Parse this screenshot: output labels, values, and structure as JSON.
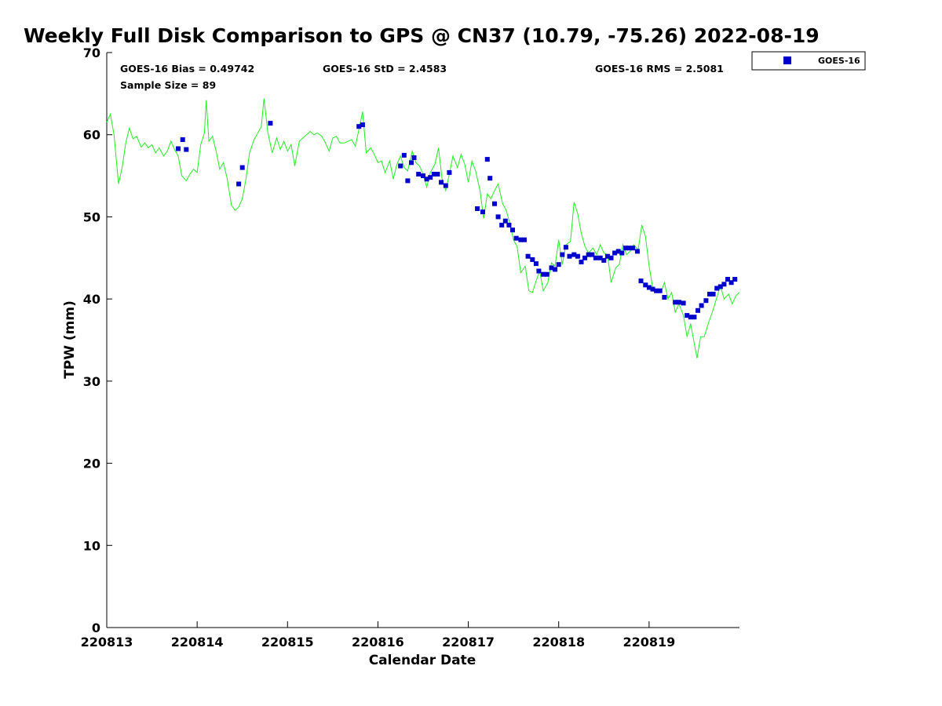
{
  "chart_data": {
    "type": "line",
    "title": "Weekly Full Disk Comparison to GPS @ CN37 (10.79, -75.26) 2022-08-19",
    "xlabel": "Calendar Date",
    "ylabel": "TPW (mm)",
    "xlim": [
      0,
      7
    ],
    "ylim": [
      0,
      70
    ],
    "x_ticks": [
      0,
      1,
      2,
      3,
      4,
      5,
      6
    ],
    "x_tick_labels": [
      "220813",
      "220814",
      "220815",
      "220816",
      "220817",
      "220818",
      "220819"
    ],
    "y_ticks": [
      0,
      10,
      20,
      30,
      40,
      50,
      60,
      70
    ],
    "y_tick_labels": [
      "0",
      "10",
      "20",
      "30",
      "40",
      "50",
      "60",
      "70"
    ],
    "grid": false,
    "legend_position": "outside-top-right",
    "stats": {
      "bias": "GOES-16 Bias = 0.49742",
      "std": "GOES-16 StD = 2.4583",
      "rms": "GOES-16 RMS = 2.5081",
      "sample": "Sample Size = 89"
    },
    "series": [
      {
        "name": "GOES-16",
        "kind": "scatter",
        "marker": "square",
        "color": "#0000cc",
        "points": [
          [
            0.79,
            58.3
          ],
          [
            0.84,
            59.4
          ],
          [
            0.88,
            58.2
          ],
          [
            1.46,
            54.0
          ],
          [
            1.5,
            56.0
          ],
          [
            1.81,
            61.4
          ],
          [
            2.79,
            61.0
          ],
          [
            2.83,
            61.2
          ],
          [
            3.25,
            56.2
          ],
          [
            3.29,
            57.5
          ],
          [
            3.33,
            54.4
          ],
          [
            3.37,
            56.6
          ],
          [
            3.4,
            57.2
          ],
          [
            3.45,
            55.2
          ],
          [
            3.5,
            55.0
          ],
          [
            3.54,
            54.6
          ],
          [
            3.58,
            54.8
          ],
          [
            3.62,
            55.2
          ],
          [
            3.66,
            55.2
          ],
          [
            3.7,
            54.2
          ],
          [
            3.75,
            53.8
          ],
          [
            3.79,
            55.4
          ],
          [
            4.1,
            51.0
          ],
          [
            4.16,
            50.6
          ],
          [
            4.21,
            57.0
          ],
          [
            4.24,
            54.7
          ],
          [
            4.29,
            51.6
          ],
          [
            4.33,
            50.0
          ],
          [
            4.37,
            49.0
          ],
          [
            4.41,
            49.5
          ],
          [
            4.45,
            49.0
          ],
          [
            4.49,
            48.4
          ],
          [
            4.53,
            47.4
          ],
          [
            4.58,
            47.2
          ],
          [
            4.62,
            47.2
          ],
          [
            4.66,
            45.2
          ],
          [
            4.71,
            44.8
          ],
          [
            4.75,
            44.3
          ],
          [
            4.78,
            43.4
          ],
          [
            4.83,
            43.0
          ],
          [
            4.87,
            43.0
          ],
          [
            4.92,
            43.8
          ],
          [
            4.96,
            43.6
          ],
          [
            5.0,
            44.2
          ],
          [
            5.04,
            45.4
          ],
          [
            5.08,
            46.3
          ],
          [
            5.12,
            45.2
          ],
          [
            5.17,
            45.4
          ],
          [
            5.21,
            45.2
          ],
          [
            5.25,
            44.5
          ],
          [
            5.29,
            45.0
          ],
          [
            5.33,
            45.4
          ],
          [
            5.37,
            45.4
          ],
          [
            5.41,
            45.0
          ],
          [
            5.46,
            45.0
          ],
          [
            5.5,
            44.7
          ],
          [
            5.54,
            45.2
          ],
          [
            5.58,
            45.0
          ],
          [
            5.62,
            45.6
          ],
          [
            5.66,
            45.8
          ],
          [
            5.7,
            45.6
          ],
          [
            5.74,
            46.2
          ],
          [
            5.78,
            46.2
          ],
          [
            5.82,
            46.2
          ],
          [
            5.87,
            45.8
          ],
          [
            5.91,
            42.2
          ],
          [
            5.96,
            41.7
          ],
          [
            6.0,
            41.4
          ],
          [
            6.04,
            41.2
          ],
          [
            6.08,
            41.0
          ],
          [
            6.12,
            41.0
          ],
          [
            6.17,
            40.2
          ],
          [
            6.29,
            39.6
          ],
          [
            6.33,
            39.6
          ],
          [
            6.38,
            39.5
          ],
          [
            6.42,
            38.0
          ],
          [
            6.46,
            37.8
          ],
          [
            6.5,
            37.8
          ],
          [
            6.54,
            38.6
          ],
          [
            6.58,
            39.2
          ],
          [
            6.63,
            39.8
          ],
          [
            6.67,
            40.6
          ],
          [
            6.71,
            40.6
          ],
          [
            6.75,
            41.3
          ],
          [
            6.79,
            41.5
          ],
          [
            6.83,
            41.8
          ],
          [
            6.87,
            42.4
          ],
          [
            6.91,
            42.0
          ],
          [
            6.95,
            42.4
          ]
        ]
      },
      {
        "name": "",
        "kind": "line",
        "color": "#22ee22",
        "points": [
          [
            0.0,
            61.5
          ],
          [
            0.04,
            62.5
          ],
          [
            0.08,
            60.0
          ],
          [
            0.13,
            54.0
          ],
          [
            0.17,
            56.0
          ],
          [
            0.21,
            59.0
          ],
          [
            0.25,
            60.8
          ],
          [
            0.29,
            59.5
          ],
          [
            0.33,
            59.8
          ],
          [
            0.38,
            58.5
          ],
          [
            0.42,
            59.0
          ],
          [
            0.46,
            58.4
          ],
          [
            0.5,
            58.8
          ],
          [
            0.54,
            57.8
          ],
          [
            0.58,
            58.4
          ],
          [
            0.63,
            57.4
          ],
          [
            0.67,
            58.0
          ],
          [
            0.71,
            59.2
          ],
          [
            0.75,
            58.2
          ],
          [
            0.79,
            57.4
          ],
          [
            0.83,
            55.0
          ],
          [
            0.88,
            54.4
          ],
          [
            0.92,
            55.2
          ],
          [
            0.96,
            55.8
          ],
          [
            1.0,
            55.4
          ],
          [
            1.04,
            58.8
          ],
          [
            1.08,
            60.2
          ],
          [
            1.1,
            64.2
          ],
          [
            1.13,
            59.2
          ],
          [
            1.17,
            59.8
          ],
          [
            1.21,
            58.0
          ],
          [
            1.25,
            55.8
          ],
          [
            1.29,
            56.6
          ],
          [
            1.33,
            54.8
          ],
          [
            1.38,
            51.4
          ],
          [
            1.42,
            50.8
          ],
          [
            1.46,
            51.2
          ],
          [
            1.5,
            52.2
          ],
          [
            1.54,
            54.6
          ],
          [
            1.58,
            57.8
          ],
          [
            1.63,
            59.4
          ],
          [
            1.67,
            60.2
          ],
          [
            1.71,
            61.0
          ],
          [
            1.74,
            64.4
          ],
          [
            1.78,
            60.4
          ],
          [
            1.83,
            57.8
          ],
          [
            1.88,
            59.6
          ],
          [
            1.92,
            58.2
          ],
          [
            1.96,
            59.2
          ],
          [
            2.0,
            58.0
          ],
          [
            2.04,
            58.8
          ],
          [
            2.08,
            56.2
          ],
          [
            2.13,
            59.2
          ],
          [
            2.17,
            59.6
          ],
          [
            2.21,
            60.0
          ],
          [
            2.25,
            60.4
          ],
          [
            2.29,
            60.0
          ],
          [
            2.33,
            60.2
          ],
          [
            2.38,
            59.8
          ],
          [
            2.42,
            59.0
          ],
          [
            2.46,
            58.0
          ],
          [
            2.5,
            59.6
          ],
          [
            2.54,
            59.8
          ],
          [
            2.58,
            59.0
          ],
          [
            2.63,
            59.0
          ],
          [
            2.67,
            59.2
          ],
          [
            2.71,
            59.4
          ],
          [
            2.75,
            58.6
          ],
          [
            2.79,
            60.6
          ],
          [
            2.83,
            62.8
          ],
          [
            2.87,
            57.8
          ],
          [
            2.92,
            58.4
          ],
          [
            2.96,
            57.6
          ],
          [
            3.0,
            56.6
          ],
          [
            3.04,
            56.8
          ],
          [
            3.08,
            55.4
          ],
          [
            3.13,
            56.8
          ],
          [
            3.17,
            54.6
          ],
          [
            3.21,
            56.4
          ],
          [
            3.25,
            57.4
          ],
          [
            3.29,
            56.0
          ],
          [
            3.33,
            55.6
          ],
          [
            3.38,
            58.0
          ],
          [
            3.42,
            56.6
          ],
          [
            3.46,
            56.2
          ],
          [
            3.5,
            55.2
          ],
          [
            3.54,
            53.6
          ],
          [
            3.58,
            55.4
          ],
          [
            3.63,
            56.4
          ],
          [
            3.67,
            58.4
          ],
          [
            3.71,
            54.6
          ],
          [
            3.75,
            53.2
          ],
          [
            3.79,
            55.2
          ],
          [
            3.83,
            57.4
          ],
          [
            3.88,
            56.0
          ],
          [
            3.92,
            57.6
          ],
          [
            3.96,
            56.4
          ],
          [
            4.0,
            54.2
          ],
          [
            4.04,
            56.8
          ],
          [
            4.08,
            55.6
          ],
          [
            4.13,
            53.2
          ],
          [
            4.17,
            49.8
          ],
          [
            4.21,
            52.8
          ],
          [
            4.25,
            52.2
          ],
          [
            4.29,
            53.2
          ],
          [
            4.33,
            54.0
          ],
          [
            4.38,
            51.6
          ],
          [
            4.42,
            50.8
          ],
          [
            4.46,
            49.2
          ],
          [
            4.5,
            47.2
          ],
          [
            4.54,
            46.4
          ],
          [
            4.58,
            43.2
          ],
          [
            4.63,
            44.0
          ],
          [
            4.67,
            41.0
          ],
          [
            4.71,
            40.8
          ],
          [
            4.75,
            42.2
          ],
          [
            4.79,
            43.4
          ],
          [
            4.83,
            41.0
          ],
          [
            4.88,
            42.0
          ],
          [
            4.92,
            44.4
          ],
          [
            4.96,
            44.0
          ],
          [
            5.0,
            47.2
          ],
          [
            5.04,
            44.2
          ],
          [
            5.08,
            46.6
          ],
          [
            5.13,
            47.0
          ],
          [
            5.17,
            51.8
          ],
          [
            5.21,
            50.4
          ],
          [
            5.25,
            48.0
          ],
          [
            5.29,
            46.4
          ],
          [
            5.33,
            45.6
          ],
          [
            5.38,
            46.2
          ],
          [
            5.42,
            45.4
          ],
          [
            5.46,
            46.6
          ],
          [
            5.5,
            45.6
          ],
          [
            5.54,
            45.4
          ],
          [
            5.58,
            42.0
          ],
          [
            5.63,
            43.8
          ],
          [
            5.67,
            44.2
          ],
          [
            5.71,
            46.6
          ],
          [
            5.75,
            45.4
          ],
          [
            5.79,
            45.8
          ],
          [
            5.83,
            46.6
          ],
          [
            5.88,
            46.0
          ],
          [
            5.92,
            49.0
          ],
          [
            5.96,
            47.6
          ],
          [
            6.0,
            44.0
          ],
          [
            6.04,
            41.4
          ],
          [
            6.08,
            40.8
          ],
          [
            6.13,
            40.8
          ],
          [
            6.17,
            42.0
          ],
          [
            6.21,
            40.0
          ],
          [
            6.25,
            40.8
          ],
          [
            6.29,
            38.4
          ],
          [
            6.33,
            39.4
          ],
          [
            6.38,
            38.0
          ],
          [
            6.42,
            35.4
          ],
          [
            6.46,
            37.0
          ],
          [
            6.5,
            34.6
          ],
          [
            6.53,
            32.8
          ],
          [
            6.57,
            35.4
          ],
          [
            6.61,
            35.4
          ],
          [
            6.66,
            37.2
          ],
          [
            6.7,
            38.4
          ],
          [
            6.75,
            40.2
          ],
          [
            6.79,
            41.6
          ],
          [
            6.83,
            40.0
          ],
          [
            6.88,
            40.6
          ],
          [
            6.92,
            39.4
          ],
          [
            6.96,
            40.4
          ],
          [
            7.0,
            40.8
          ]
        ]
      }
    ]
  }
}
